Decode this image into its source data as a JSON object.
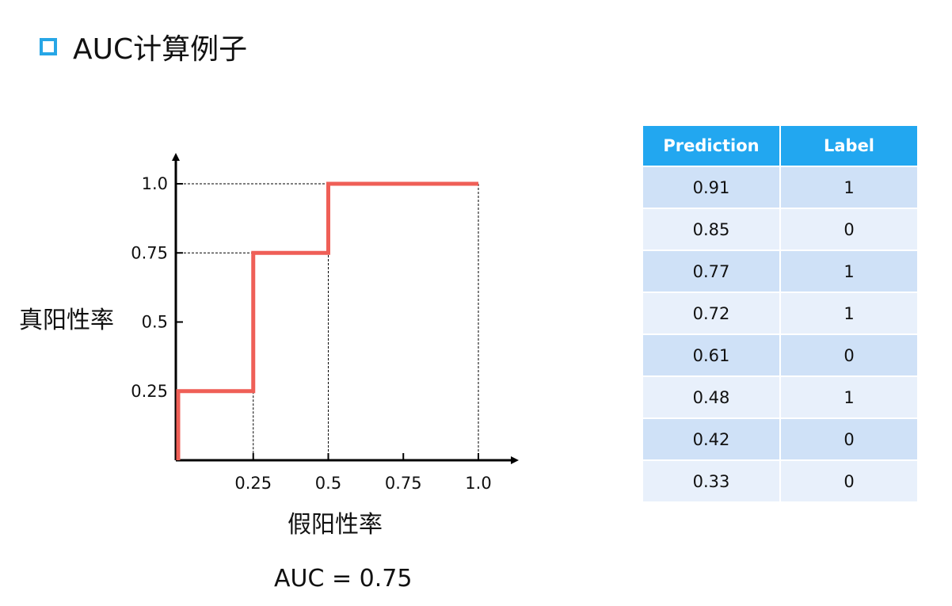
{
  "slide": {
    "title": "AUC计算例子",
    "bullet_color": "#27a6e6"
  },
  "chart_data": {
    "type": "line",
    "xlabel": "假阳性率",
    "ylabel": "真阳性率",
    "x_ticks": [
      "0.25",
      "0.5",
      "0.75",
      "1.0"
    ],
    "y_ticks": [
      "1.0",
      "0.75",
      "0.5",
      "0.25"
    ],
    "xlim": [
      0,
      1.0
    ],
    "ylim": [
      0,
      1.0
    ],
    "series": [
      {
        "color": "#ef5f57",
        "x": [
          0,
          0,
          0.25,
          0.25,
          0.5,
          0.5,
          1.0
        ],
        "y": [
          0,
          0.25,
          0.25,
          0.75,
          0.75,
          1.0,
          1.0
        ]
      }
    ],
    "guide_lines": true,
    "auc_text": "AUC = 0.75"
  },
  "table": {
    "headers": [
      "Prediction",
      "Label"
    ],
    "header_color": "#22a7f0",
    "rows": [
      [
        "0.91",
        "1"
      ],
      [
        "0.85",
        "0"
      ],
      [
        "0.77",
        "1"
      ],
      [
        "0.72",
        "1"
      ],
      [
        "0.61",
        "0"
      ],
      [
        "0.48",
        "1"
      ],
      [
        "0.42",
        "0"
      ],
      [
        "0.33",
        "0"
      ]
    ]
  }
}
